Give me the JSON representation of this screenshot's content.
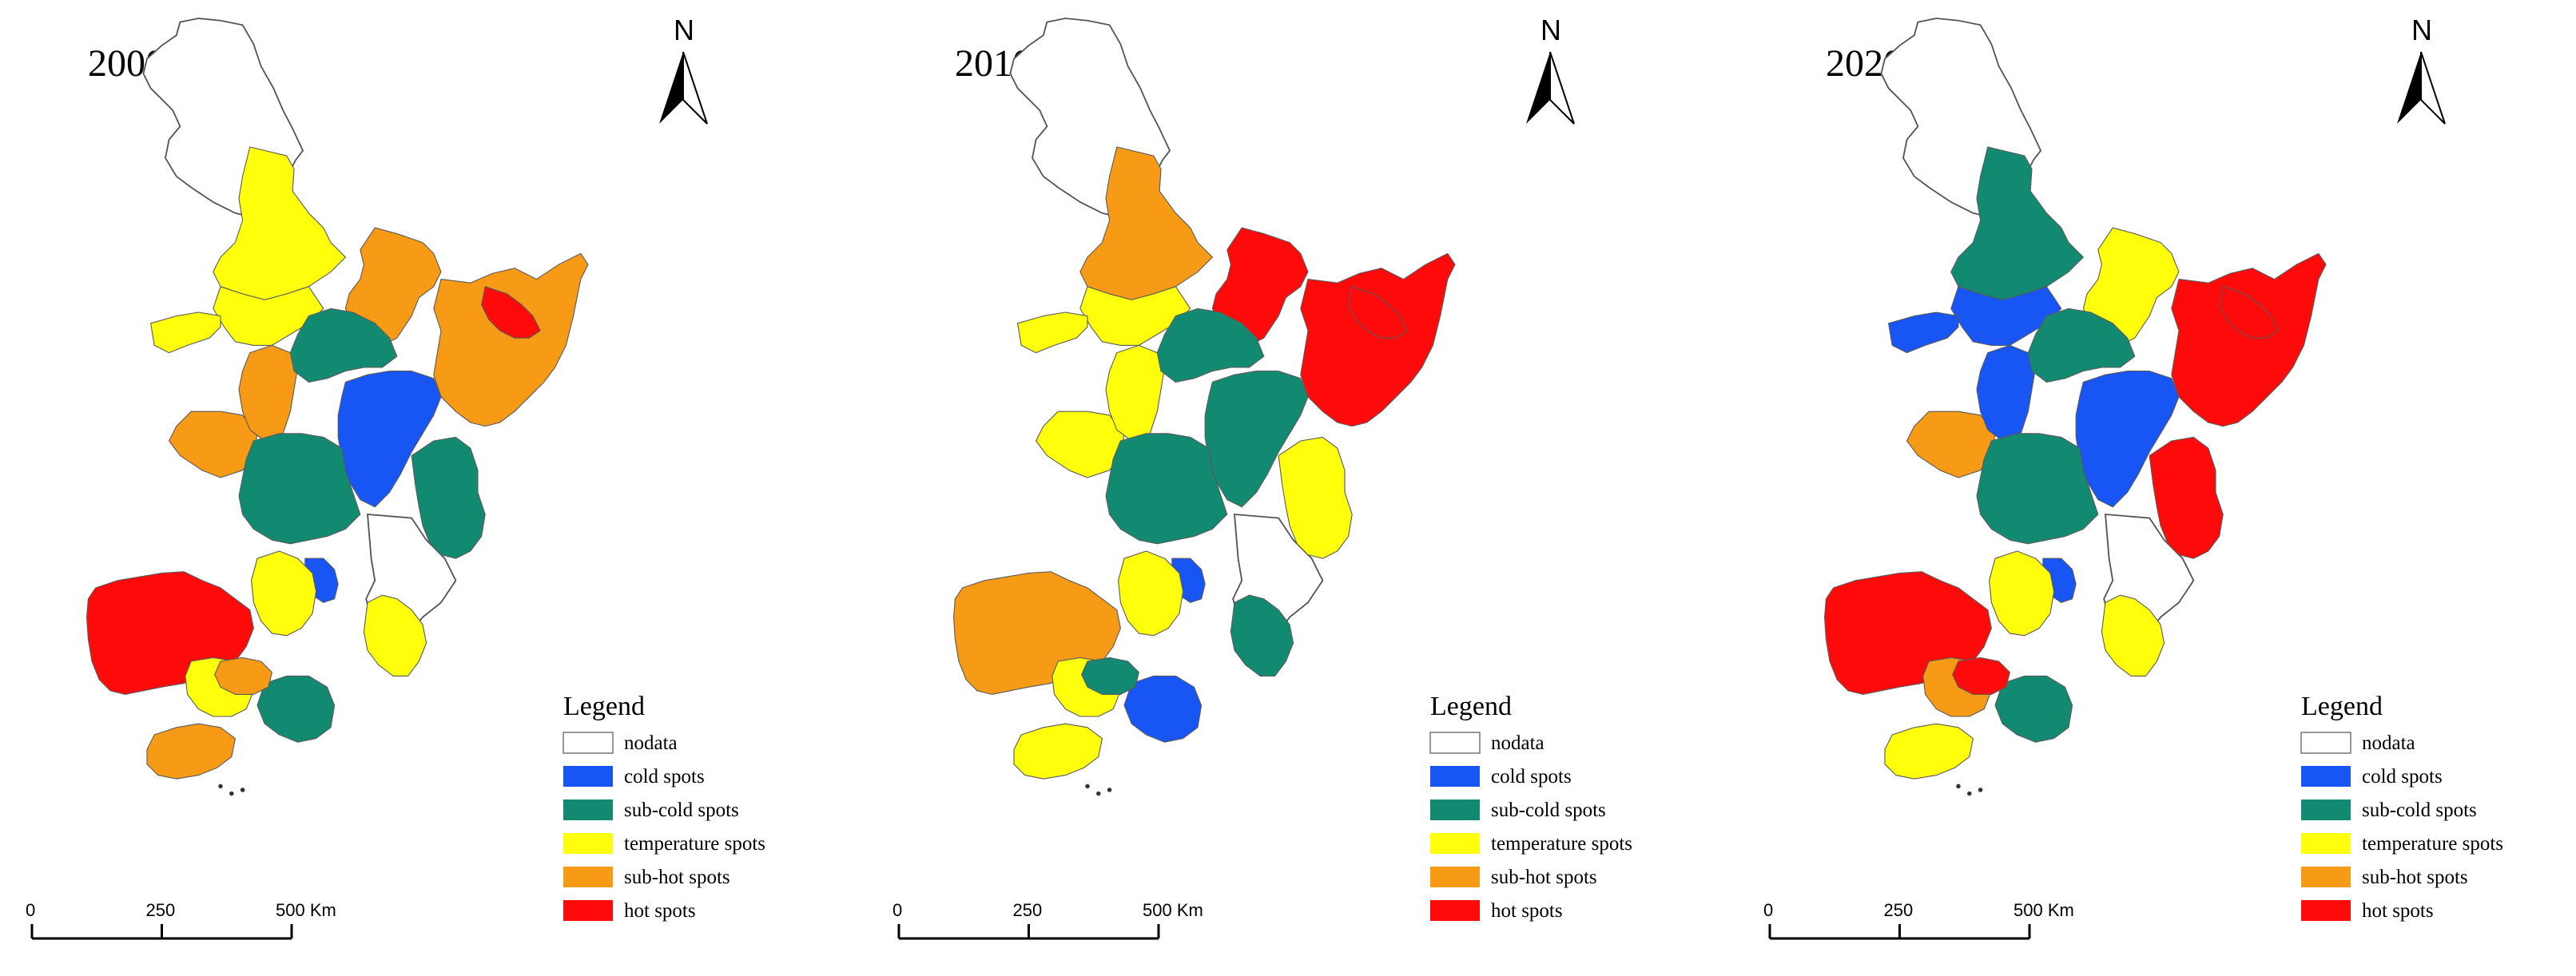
{
  "colors": {
    "nodata": "#ffffff",
    "cold": "#1755f5",
    "subcold": "#128a72",
    "temperature": "#ffff0c",
    "subhot": "#f79b16",
    "hot": "#ff0a0a"
  },
  "legend": {
    "title": "Legend",
    "items": [
      {
        "key": "nodata",
        "label": "nodata"
      },
      {
        "key": "cold",
        "label": "cold spots"
      },
      {
        "key": "subcold",
        "label": "sub-cold spots"
      },
      {
        "key": "temperature",
        "label": "temperature spots"
      },
      {
        "key": "subhot",
        "label": "sub-hot spots"
      },
      {
        "key": "hot",
        "label": "hot spots"
      }
    ]
  },
  "north_arrow": {
    "label": "N"
  },
  "scale_bar": {
    "ticks": [
      "0",
      "250",
      "500 Km"
    ]
  },
  "maps": [
    {
      "year": "2000",
      "regions": {
        "north_top": "temperature",
        "north_mid": "temperature",
        "west_small": "temperature",
        "far_west": "subhot",
        "west_mid": "subhot",
        "northeast": "subhot",
        "east": "subhot",
        "ne_strip": "hot",
        "centre_north": "subcold",
        "centre": "cold",
        "south_centre": "subcold",
        "east_south": "subcold",
        "south_small": "cold",
        "lower_right": "temperature",
        "sw": "hot",
        "sw_mid": "temperature",
        "sw_small": "temperature",
        "south_tip": "subhot",
        "south_centre_low": "subcold",
        "south_low_mid": "subhot"
      }
    },
    {
      "year": "2010",
      "regions": {
        "north_top": "subhot",
        "north_mid": "temperature",
        "west_small": "temperature",
        "far_west": "temperature",
        "west_mid": "temperature",
        "northeast": "hot",
        "east": "hot",
        "ne_strip": "hot",
        "centre_north": "subcold",
        "centre": "subcold",
        "south_centre": "subcold",
        "east_south": "temperature",
        "south_small": "cold",
        "lower_right": "subcold",
        "sw": "subhot",
        "sw_mid": "temperature",
        "sw_small": "temperature",
        "south_tip": "temperature",
        "south_centre_low": "cold",
        "south_low_mid": "subcold"
      }
    },
    {
      "year": "2020",
      "regions": {
        "north_top": "subcold",
        "north_mid": "cold",
        "west_small": "cold",
        "far_west": "subhot",
        "west_mid": "cold",
        "northeast": "temperature",
        "east": "hot",
        "ne_strip": "hot",
        "centre_north": "subcold",
        "centre": "cold",
        "south_centre": "subcold",
        "east_south": "hot",
        "south_small": "cold",
        "lower_right": "temperature",
        "sw": "hot",
        "sw_mid": "temperature",
        "sw_small": "subhot",
        "south_tip": "temperature",
        "south_centre_low": "subcold",
        "south_low_mid": "hot"
      }
    }
  ]
}
